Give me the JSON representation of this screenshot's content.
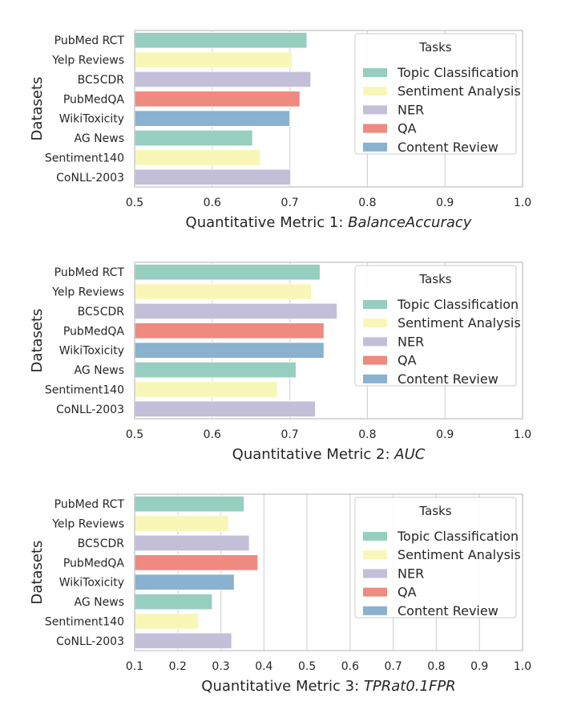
{
  "legend_title": "Tasks",
  "task_colors": {
    "Topic Classification": "#96cec0",
    "Sentiment Analysis": "#f8f7b8",
    "NER": "#c3bfd9",
    "QA": "#ee8a80",
    "Content Review": "#8ab1cf"
  },
  "chart_data": [
    {
      "type": "bar",
      "orientation": "horizontal",
      "title": "",
      "xlabel_prefix": "Quantitative Metric 1: ",
      "xlabel_math": "BalanceAccuracy",
      "ylabel": "Datasets",
      "xlim": [
        0.5,
        1.0
      ],
      "xticks": [
        "0.5",
        "0.6",
        "0.7",
        "0.8",
        "0.9",
        "1.0"
      ],
      "categories": [
        "PubMed RCT",
        "Yelp Reviews",
        "BC5CDR",
        "PubMedQA",
        "WikiToxicity",
        "AG News",
        "Sentiment140",
        "CoNLL-2003"
      ],
      "tasks": [
        "Topic Classification",
        "Sentiment Analysis",
        "NER",
        "QA",
        "Content Review",
        "Topic Classification",
        "Sentiment Analysis",
        "NER"
      ],
      "values": [
        0.722,
        0.703,
        0.727,
        0.713,
        0.7,
        0.652,
        0.662,
        0.701
      ],
      "legend": [
        "Topic Classification",
        "Sentiment Analysis",
        "NER",
        "QA",
        "Content Review"
      ],
      "legend_position": "top-right",
      "grid": true
    },
    {
      "type": "bar",
      "orientation": "horizontal",
      "title": "",
      "xlabel_prefix": "Quantitative Metric 2: ",
      "xlabel_math": "AUC",
      "ylabel": "Datasets",
      "xlim": [
        0.5,
        1.0
      ],
      "xticks": [
        "0.5",
        "0.6",
        "0.7",
        "0.8",
        "0.9",
        "1.0"
      ],
      "categories": [
        "PubMed RCT",
        "Yelp Reviews",
        "BC5CDR",
        "PubMedQA",
        "WikiToxicity",
        "AG News",
        "Sentiment140",
        "CoNLL-2003"
      ],
      "tasks": [
        "Topic Classification",
        "Sentiment Analysis",
        "NER",
        "QA",
        "Content Review",
        "Topic Classification",
        "Sentiment Analysis",
        "NER"
      ],
      "values": [
        0.739,
        0.728,
        0.761,
        0.744,
        0.744,
        0.708,
        0.684,
        0.733
      ],
      "legend": [
        "Topic Classification",
        "Sentiment Analysis",
        "NER",
        "QA",
        "Content Review"
      ],
      "legend_position": "top-right",
      "grid": true
    },
    {
      "type": "bar",
      "orientation": "horizontal",
      "title": "",
      "xlabel_prefix": "Quantitative Metric 3: ",
      "xlabel_math": "TPRat0.1FPR",
      "ylabel": "Datasets",
      "xlim": [
        0.1,
        1.0
      ],
      "xticks": [
        "0.1",
        "0.2",
        "0.3",
        "0.4",
        "0.5",
        "0.6",
        "0.7",
        "0.8",
        "0.9",
        "1.0"
      ],
      "categories": [
        "PubMed RCT",
        "Yelp Reviews",
        "BC5CDR",
        "PubMedQA",
        "WikiToxicity",
        "AG News",
        "Sentiment140",
        "CoNLL-2003"
      ],
      "tasks": [
        "Topic Classification",
        "Sentiment Analysis",
        "NER",
        "QA",
        "Content Review",
        "Topic Classification",
        "Sentiment Analysis",
        "NER"
      ],
      "values": [
        0.354,
        0.318,
        0.366,
        0.386,
        0.331,
        0.28,
        0.248,
        0.325
      ],
      "legend": [
        "Topic Classification",
        "Sentiment Analysis",
        "NER",
        "QA",
        "Content Review"
      ],
      "legend_position": "top-right",
      "grid": true
    }
  ]
}
